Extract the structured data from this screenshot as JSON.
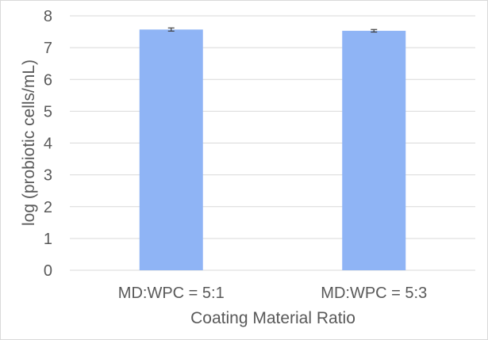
{
  "chart_data": {
    "type": "bar",
    "title": "",
    "xlabel": "Coating Material Ratio",
    "ylabel": "log (probiotic cells/mL)",
    "categories": [
      "MD:WPC = 5:1",
      "MD:WPC = 5:3"
    ],
    "values": [
      7.57,
      7.53
    ],
    "error": [
      0.05,
      0.04
    ],
    "ylim": [
      0,
      8
    ],
    "yticks": [
      "0",
      "1",
      "2",
      "3",
      "4",
      "5",
      "6",
      "7",
      "8"
    ],
    "grid": true,
    "legend": "none",
    "bar_color": "#8fb4f5",
    "grid_color": "#d9d9d9",
    "text_color": "#595959"
  }
}
